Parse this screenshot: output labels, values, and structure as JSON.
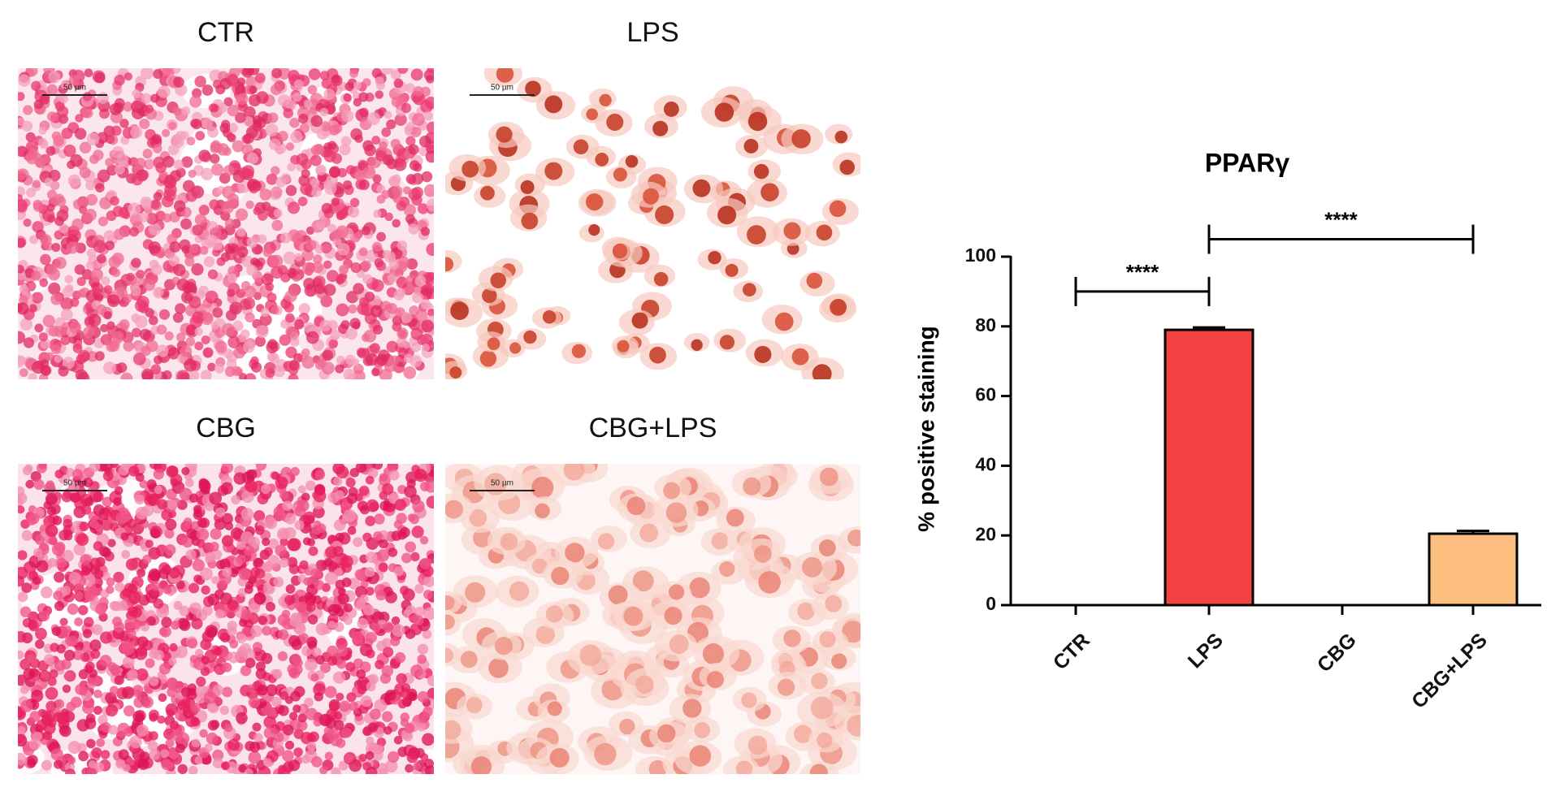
{
  "panels": [
    {
      "label": "CTR",
      "scale_bar": "50 µm"
    },
    {
      "label": "LPS",
      "scale_bar": "50 µm"
    },
    {
      "label": "CBG",
      "scale_bar": "50 µm"
    },
    {
      "label": "CBG+LPS",
      "scale_bar": "50 µm"
    }
  ],
  "chart_data": {
    "type": "bar",
    "title": "PPARγ",
    "ylabel": "% positive staining",
    "categories": [
      "CTR",
      "LPS",
      "CBG",
      "CBG+LPS"
    ],
    "values": [
      0,
      79,
      0,
      20.5
    ],
    "errors": [
      null,
      0.7,
      null,
      0.8
    ],
    "colors": [
      null,
      "#f44242",
      null,
      "#fdbf80"
    ],
    "ylim": [
      0,
      100
    ],
    "yticks": [
      0,
      20,
      40,
      60,
      80,
      100
    ],
    "annotations": [
      {
        "from": "CTR",
        "to": "LPS",
        "y": 90,
        "label": "****"
      },
      {
        "from": "LPS",
        "to": "CBG+LPS",
        "y": 105,
        "label": "****"
      }
    ]
  }
}
